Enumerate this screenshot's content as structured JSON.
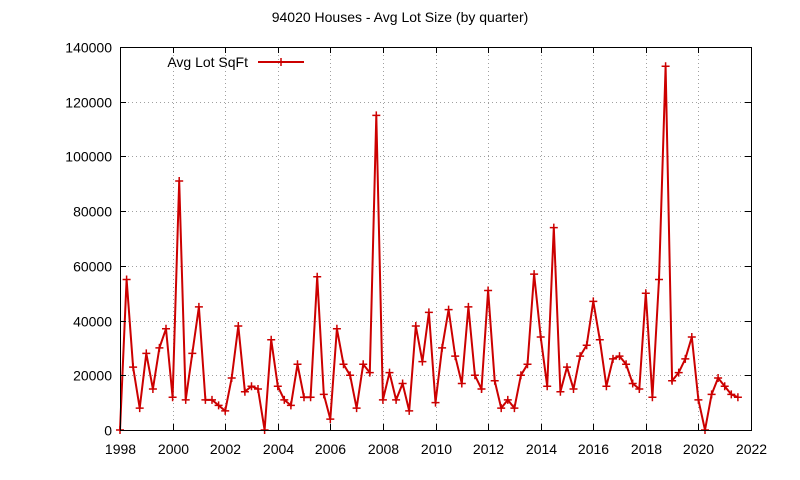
{
  "chart_data": {
    "type": "line",
    "title": "94020 Houses - Avg Lot Size (by quarter)",
    "xlabel": "",
    "ylabel": "",
    "xlim": [
      1998,
      2022
    ],
    "ylim": [
      0,
      140000
    ],
    "x_ticks": [
      "1998",
      "2000",
      "2002",
      "2004",
      "2006",
      "2008",
      "2010",
      "2012",
      "2014",
      "2016",
      "2018",
      "2020",
      "2022"
    ],
    "y_ticks": [
      "0",
      "20000",
      "40000",
      "60000",
      "80000",
      "100000",
      "120000",
      "140000"
    ],
    "grid": true,
    "legend_position": "top-left",
    "series": [
      {
        "name": "Avg Lot SqFt",
        "color": "#cc0000",
        "points": [
          [
            1998.0,
            0
          ],
          [
            1998.25,
            55000
          ],
          [
            1998.5,
            23000
          ],
          [
            1998.75,
            8000
          ],
          [
            1999.0,
            28000
          ],
          [
            1999.25,
            15000
          ],
          [
            1999.5,
            30000
          ],
          [
            1999.75,
            37000
          ],
          [
            2000.0,
            12000
          ],
          [
            2000.25,
            91000
          ],
          [
            2000.5,
            11000
          ],
          [
            2000.75,
            28000
          ],
          [
            2001.0,
            45000
          ],
          [
            2001.25,
            11000
          ],
          [
            2001.5,
            11000
          ],
          [
            2001.75,
            9000
          ],
          [
            2002.0,
            7000
          ],
          [
            2002.25,
            19000
          ],
          [
            2002.5,
            38000
          ],
          [
            2002.75,
            14000
          ],
          [
            2003.0,
            16000
          ],
          [
            2003.25,
            15000
          ],
          [
            2003.5,
            0
          ],
          [
            2003.75,
            33000
          ],
          [
            2004.0,
            16000
          ],
          [
            2004.25,
            11000
          ],
          [
            2004.5,
            9000
          ],
          [
            2004.75,
            24000
          ],
          [
            2005.0,
            12000
          ],
          [
            2005.25,
            12000
          ],
          [
            2005.5,
            56000
          ],
          [
            2005.75,
            13000
          ],
          [
            2006.0,
            4000
          ],
          [
            2006.25,
            37000
          ],
          [
            2006.5,
            24000
          ],
          [
            2006.75,
            20000
          ],
          [
            2007.0,
            8000
          ],
          [
            2007.25,
            24000
          ],
          [
            2007.5,
            21000
          ],
          [
            2007.75,
            115000
          ],
          [
            2008.0,
            11000
          ],
          [
            2008.25,
            21000
          ],
          [
            2008.5,
            11000
          ],
          [
            2008.75,
            17000
          ],
          [
            2009.0,
            7000
          ],
          [
            2009.25,
            38000
          ],
          [
            2009.5,
            25000
          ],
          [
            2009.75,
            43000
          ],
          [
            2010.0,
            10000
          ],
          [
            2010.25,
            30000
          ],
          [
            2010.5,
            44000
          ],
          [
            2010.75,
            27000
          ],
          [
            2011.0,
            17000
          ],
          [
            2011.25,
            45000
          ],
          [
            2011.5,
            20000
          ],
          [
            2011.75,
            15000
          ],
          [
            2012.0,
            51000
          ],
          [
            2012.25,
            18000
          ],
          [
            2012.5,
            8000
          ],
          [
            2012.75,
            11000
          ],
          [
            2013.0,
            8000
          ],
          [
            2013.25,
            20000
          ],
          [
            2013.5,
            24000
          ],
          [
            2013.75,
            57000
          ],
          [
            2014.0,
            34000
          ],
          [
            2014.25,
            16000
          ],
          [
            2014.5,
            74000
          ],
          [
            2014.75,
            14000
          ],
          [
            2015.0,
            23000
          ],
          [
            2015.25,
            15000
          ],
          [
            2015.5,
            27000
          ],
          [
            2015.75,
            31000
          ],
          [
            2016.0,
            47000
          ],
          [
            2016.25,
            33000
          ],
          [
            2016.5,
            16000
          ],
          [
            2016.75,
            26000
          ],
          [
            2017.0,
            27000
          ],
          [
            2017.25,
            24000
          ],
          [
            2017.5,
            17000
          ],
          [
            2017.75,
            15000
          ],
          [
            2018.0,
            50000
          ],
          [
            2018.25,
            12000
          ],
          [
            2018.5,
            55000
          ],
          [
            2018.75,
            133000
          ],
          [
            2019.0,
            18000
          ],
          [
            2019.25,
            21000
          ],
          [
            2019.5,
            26000
          ],
          [
            2019.75,
            34000
          ],
          [
            2020.0,
            11000
          ],
          [
            2020.25,
            0
          ],
          [
            2020.5,
            13000
          ],
          [
            2020.75,
            19000
          ],
          [
            2021.0,
            16000
          ],
          [
            2021.25,
            13000
          ],
          [
            2021.5,
            12000
          ]
        ]
      }
    ]
  }
}
